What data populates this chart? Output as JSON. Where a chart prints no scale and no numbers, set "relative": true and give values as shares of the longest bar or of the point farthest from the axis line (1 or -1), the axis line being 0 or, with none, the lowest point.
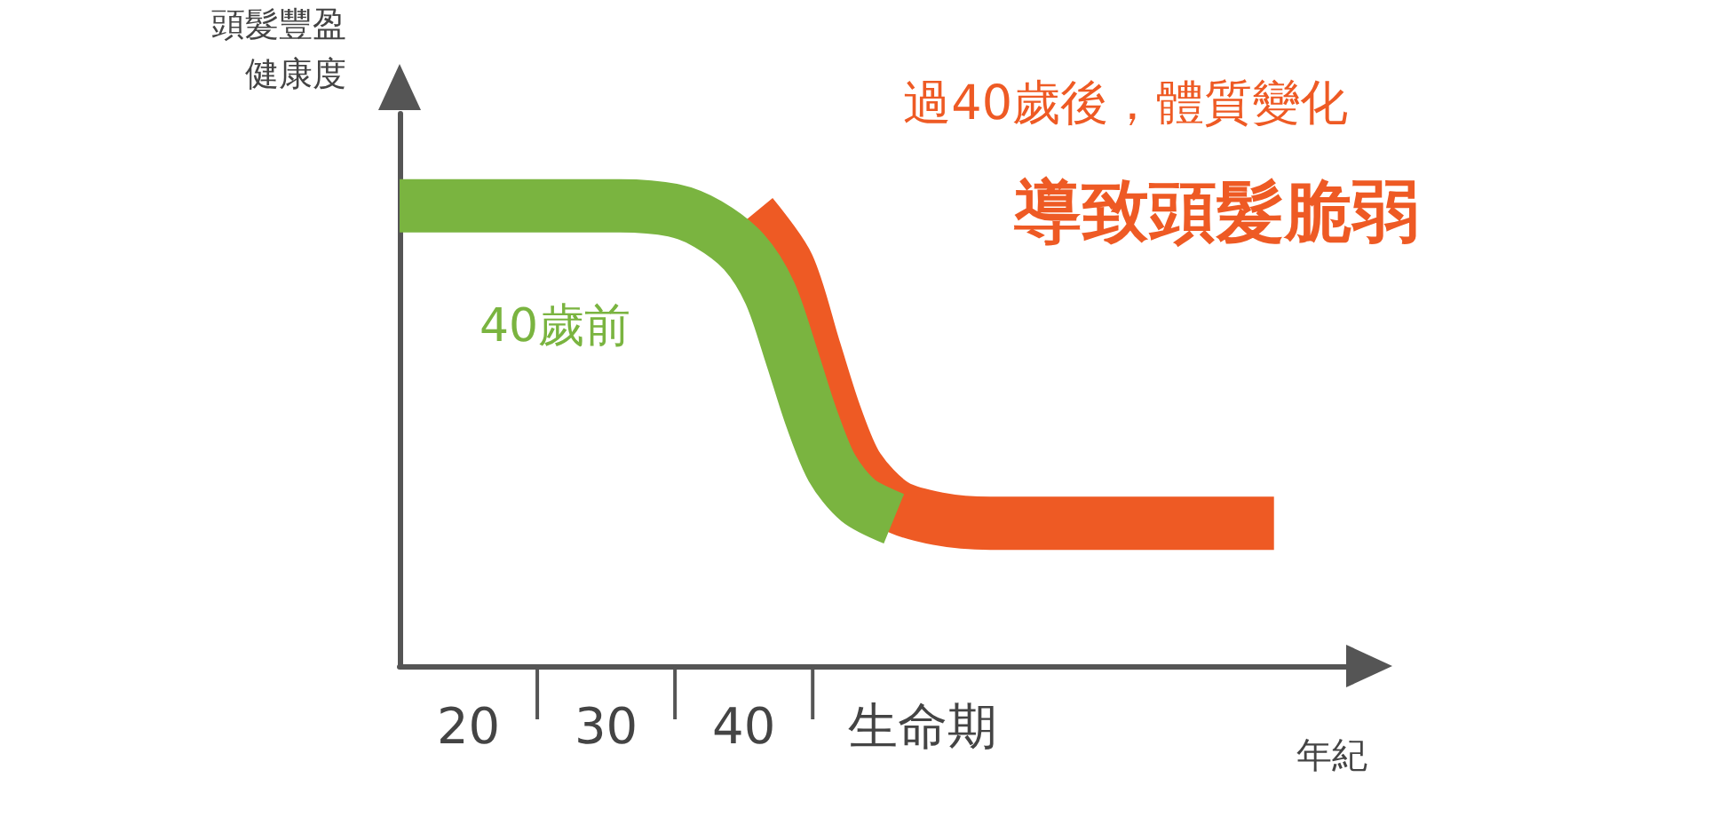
{
  "chart_data": {
    "type": "line",
    "title": "過40歲後，體質變化",
    "subtitle": "導致頭髮脆弱",
    "ylabel": "頭髮豐盈健康度",
    "xlabel": "年紀",
    "relative": true,
    "legend": false,
    "grid": false,
    "marker": "none",
    "line_style": "solid",
    "xlim": [
      15,
      84
    ],
    "xticks": [
      {
        "value": 20,
        "label": "20"
      },
      {
        "value": 30,
        "label": "30"
      },
      {
        "value": 40,
        "label": "40"
      },
      {
        "value": 53,
        "label": "生命期"
      }
    ],
    "series": [
      {
        "name": null,
        "color": "#ee5a24",
        "x": [
          40.6,
          43.2,
          45.1,
          46.7,
          48.3,
          50.9,
          54.1,
          57.9,
          78.5
        ],
        "values": [
          0.98,
          0.87,
          0.69,
          0.54,
          0.43,
          0.35,
          0.32,
          0.31,
          0.31
        ]
      },
      {
        "name": "40歲前",
        "color": "#7ab440",
        "x": [
          15,
          31,
          34.9,
          37.4,
          40,
          41.9,
          43.5,
          44.9,
          46.4,
          48.3,
          50.9
        ],
        "values": [
          1,
          1,
          0.99,
          0.96,
          0.9,
          0.81,
          0.67,
          0.54,
          0.43,
          0.36,
          0.32
        ]
      }
    ]
  }
}
